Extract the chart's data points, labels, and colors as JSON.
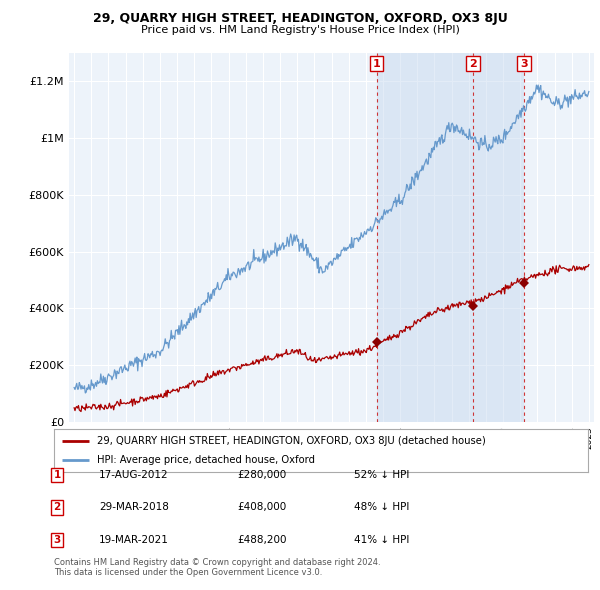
{
  "title": "29, QUARRY HIGH STREET, HEADINGTON, OXFORD, OX3 8JU",
  "subtitle": "Price paid vs. HM Land Registry's House Price Index (HPI)",
  "background_color": "#ffffff",
  "plot_bg_color": "#dce8f5",
  "plot_bg_color_light": "#edf3fa",
  "shade_color": "#c8daf0",
  "grid_color": "#ffffff",
  "red_line_color": "#aa0000",
  "blue_line_color": "#6699cc",
  "transaction_marker_color": "#8b0000",
  "vline_color": "#cc2222",
  "ylim": [
    0,
    1300000
  ],
  "yticks": [
    0,
    200000,
    400000,
    600000,
    800000,
    1000000,
    1200000
  ],
  "ytick_labels": [
    "£0",
    "£200K",
    "£400K",
    "£600K",
    "£800K",
    "£1M",
    "£1.2M"
  ],
  "xstart_year": 1995,
  "xend_year": 2025,
  "transactions": [
    {
      "label": "1",
      "date_num": 2012.63,
      "price": 280000,
      "text": "17-AUG-2012",
      "price_str": "£280,000",
      "pct": "52% ↓ HPI"
    },
    {
      "label": "2",
      "date_num": 2018.24,
      "price": 408000,
      "text": "29-MAR-2018",
      "price_str": "£408,000",
      "pct": "48% ↓ HPI"
    },
    {
      "label": "3",
      "date_num": 2021.22,
      "price": 488200,
      "text": "19-MAR-2021",
      "price_str": "£488,200",
      "pct": "41% ↓ HPI"
    }
  ],
  "hpi_note": "Contains HM Land Registry data © Crown copyright and database right 2024.\nThis data is licensed under the Open Government Licence v3.0.",
  "legend_red_label": "29, QUARRY HIGH STREET, HEADINGTON, OXFORD, OX3 8JU (detached house)",
  "legend_blue_label": "HPI: Average price, detached house, Oxford"
}
